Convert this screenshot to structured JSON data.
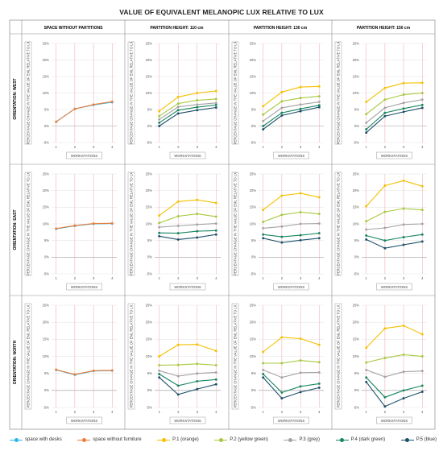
{
  "title": "VALUE OF EQUIVALENT MELANOPIC LUX RELATIVE TO LUX",
  "column_headers": [
    "SPACE WITHOUT PARTITIONS",
    "PARTITION HEIGHT: 110 cm",
    "PARTITION HEIGHT: 130 cm",
    "PARTITION HEIGHT: 150 cm"
  ],
  "row_headers": [
    "ORIENTATION: WEST",
    "ORIENTATION: EAST",
    "ORIENTATION: NORTH"
  ],
  "legend": [
    {
      "label": "space with desks",
      "color": "#29b6e8"
    },
    {
      "label": "space without furniture",
      "color": "#ee7d3b"
    },
    {
      "label": "P.1 (orange)",
      "color": "#f5c000"
    },
    {
      "label": "P.2 (yellow green)",
      "color": "#a6c83c"
    },
    {
      "label": "P.3 (grey)",
      "color": "#a3a3a3"
    },
    {
      "label": "P.4 (dark green)",
      "color": "#17855f"
    },
    {
      "label": "P.5 (blue)",
      "color": "#1c4f6a"
    }
  ],
  "chart_data": {
    "type": "line",
    "layout": "small-multiples 3x4",
    "x": [
      1,
      2,
      3,
      4
    ],
    "xlabel": "WORKSTATIONS",
    "ylabel": "PERCENTAGE CHANGE IN THE VALUE OF EML RELATIVE TO LX",
    "ylim": [
      -5,
      25
    ],
    "yticks": [
      "-5%",
      "0%",
      "5%",
      "10%",
      "15%",
      "20%",
      "25%"
    ],
    "panels": [
      {
        "row": "ORIENTATION: WEST",
        "column": "SPACE WITHOUT PARTITIONS",
        "series": [
          {
            "name": "space with desks",
            "color": "#29b6e8",
            "values": [
              1.3,
              5.2,
              6.4,
              7.2
            ]
          },
          {
            "name": "space without furniture",
            "color": "#ee7d3b",
            "values": [
              1.3,
              5.2,
              6.5,
              7.4
            ]
          }
        ]
      },
      {
        "row": "ORIENTATION: WEST",
        "column": "PARTITION HEIGHT: 110 cm",
        "series": [
          {
            "name": "P.1 (orange)",
            "color": "#f5c000",
            "values": [
              4.5,
              8.8,
              10.0,
              10.6
            ]
          },
          {
            "name": "P.2 (yellow green)",
            "color": "#a6c83c",
            "values": [
              3.0,
              6.8,
              7.8,
              8.2
            ]
          },
          {
            "name": "P.3 (grey)",
            "color": "#a3a3a3",
            "values": [
              2.0,
              5.8,
              6.5,
              7.0
            ]
          },
          {
            "name": "P.4 (dark green)",
            "color": "#17855f",
            "values": [
              1.0,
              4.8,
              5.7,
              6.4
            ]
          },
          {
            "name": "P.5 (blue)",
            "color": "#1c4f6a",
            "values": [
              0.0,
              3.8,
              4.8,
              5.6
            ]
          }
        ]
      },
      {
        "row": "ORIENTATION: WEST",
        "column": "PARTITION HEIGHT: 130 cm",
        "series": [
          {
            "name": "P.1 (orange)",
            "color": "#f5c000",
            "values": [
              6.0,
              10.3,
              11.8,
              12.0
            ]
          },
          {
            "name": "P.2 (yellow green)",
            "color": "#a6c83c",
            "values": [
              3.5,
              7.5,
              8.5,
              9.0
            ]
          },
          {
            "name": "P.3 (grey)",
            "color": "#a3a3a3",
            "values": [
              1.5,
              5.5,
              6.5,
              7.3
            ]
          },
          {
            "name": "P.4 (dark green)",
            "color": "#17855f",
            "values": [
              0.0,
              4.0,
              5.2,
              6.3
            ]
          },
          {
            "name": "P.5 (blue)",
            "color": "#1c4f6a",
            "values": [
              -1.0,
              3.2,
              4.5,
              5.7
            ]
          }
        ]
      },
      {
        "row": "ORIENTATION: WEST",
        "column": "PARTITION HEIGHT: 150 cm",
        "series": [
          {
            "name": "P.1 (orange)",
            "color": "#f5c000",
            "values": [
              7.3,
              11.5,
              13.0,
              13.1
            ]
          },
          {
            "name": "P.2 (yellow green)",
            "color": "#a6c83c",
            "values": [
              3.6,
              8.0,
              9.5,
              10.0
            ]
          },
          {
            "name": "P.3 (grey)",
            "color": "#a3a3a3",
            "values": [
              1.0,
              5.5,
              7.0,
              8.0
            ]
          },
          {
            "name": "P.4 (dark green)",
            "color": "#17855f",
            "values": [
              -1.0,
              4.0,
              5.3,
              6.4
            ]
          },
          {
            "name": "P.5 (blue)",
            "color": "#1c4f6a",
            "values": [
              -2.0,
              3.0,
              4.3,
              5.5
            ]
          }
        ]
      },
      {
        "row": "ORIENTATION: EAST",
        "column": "SPACE WITHOUT PARTITIONS",
        "series": [
          {
            "name": "space with desks",
            "color": "#29b6e8",
            "values": [
              8.5,
              9.4,
              10.0,
              10.1
            ]
          },
          {
            "name": "space without furniture",
            "color": "#ee7d3b",
            "values": [
              8.6,
              9.5,
              10.1,
              10.2
            ]
          }
        ]
      },
      {
        "row": "ORIENTATION: EAST",
        "column": "PARTITION HEIGHT: 110 cm",
        "series": [
          {
            "name": "P.1 (orange)",
            "color": "#f5c000",
            "values": [
              12.5,
              16.7,
              17.2,
              16.3
            ]
          },
          {
            "name": "P.2 (yellow green)",
            "color": "#a6c83c",
            "values": [
              10.3,
              12.3,
              13.0,
              12.2
            ]
          },
          {
            "name": "P.3 (grey)",
            "color": "#a3a3a3",
            "values": [
              9.0,
              9.4,
              9.8,
              10.1
            ]
          },
          {
            "name": "P.4 (dark green)",
            "color": "#17855f",
            "values": [
              7.3,
              7.2,
              7.8,
              8.0
            ]
          },
          {
            "name": "P.5 (blue)",
            "color": "#1c4f6a",
            "values": [
              6.3,
              5.3,
              5.9,
              6.8
            ]
          }
        ]
      },
      {
        "row": "ORIENTATION: EAST",
        "column": "PARTITION HEIGHT: 130 cm",
        "series": [
          {
            "name": "P.1 (orange)",
            "color": "#f5c000",
            "values": [
              14.2,
              18.5,
              19.2,
              18.0
            ]
          },
          {
            "name": "P.2 (yellow green)",
            "color": "#a6c83c",
            "values": [
              10.6,
              12.7,
              13.5,
              13.0
            ]
          },
          {
            "name": "P.3 (grey)",
            "color": "#a3a3a3",
            "values": [
              8.7,
              9.2,
              10.0,
              10.1
            ]
          },
          {
            "name": "P.4 (dark green)",
            "color": "#17855f",
            "values": [
              6.8,
              6.1,
              6.6,
              7.2
            ]
          },
          {
            "name": "P.5 (blue)",
            "color": "#1c4f6a",
            "values": [
              5.7,
              4.4,
              5.1,
              5.7
            ]
          }
        ]
      },
      {
        "row": "ORIENTATION: EAST",
        "column": "PARTITION HEIGHT: 150 cm",
        "series": [
          {
            "name": "P.1 (orange)",
            "color": "#f5c000",
            "values": [
              15.3,
              21.5,
              23.0,
              21.3
            ]
          },
          {
            "name": "P.2 (yellow green)",
            "color": "#a6c83c",
            "values": [
              10.8,
              13.6,
              14.6,
              14.2
            ]
          },
          {
            "name": "P.3 (grey)",
            "color": "#a3a3a3",
            "values": [
              8.3,
              8.8,
              9.8,
              10.0
            ]
          },
          {
            "name": "P.4 (dark green)",
            "color": "#17855f",
            "values": [
              6.5,
              5.0,
              6.0,
              6.8
            ]
          },
          {
            "name": "P.5 (blue)",
            "color": "#1c4f6a",
            "values": [
              5.3,
              2.7,
              3.7,
              4.7
            ]
          }
        ]
      },
      {
        "row": "ORIENTATION: NORTH",
        "column": "SPACE WITHOUT PARTITIONS",
        "series": [
          {
            "name": "space with desks",
            "color": "#29b6e8",
            "values": [
              6.0,
              4.6,
              5.7,
              5.8
            ]
          },
          {
            "name": "space without furniture",
            "color": "#ee7d3b",
            "values": [
              6.1,
              4.7,
              5.8,
              5.9
            ]
          }
        ]
      },
      {
        "row": "ORIENTATION: NORTH",
        "column": "PARTITION HEIGHT: 110 cm",
        "series": [
          {
            "name": "P.1 (orange)",
            "color": "#f5c000",
            "values": [
              10.0,
              13.4,
              13.5,
              11.6
            ]
          },
          {
            "name": "P.2 (yellow green)",
            "color": "#a6c83c",
            "values": [
              7.4,
              7.5,
              7.8,
              7.4
            ]
          },
          {
            "name": "P.3 (grey)",
            "color": "#a3a3a3",
            "values": [
              5.8,
              4.2,
              5.0,
              5.3
            ]
          },
          {
            "name": "P.4 (dark green)",
            "color": "#17855f",
            "values": [
              4.8,
              1.4,
              2.7,
              3.2
            ]
          },
          {
            "name": "P.5 (blue)",
            "color": "#1c4f6a",
            "values": [
              3.8,
              -1.2,
              0.4,
              1.8
            ]
          }
        ]
      },
      {
        "row": "ORIENTATION: NORTH",
        "column": "PARTITION HEIGHT: 130 cm",
        "series": [
          {
            "name": "P.1 (orange)",
            "color": "#f5c000",
            "values": [
              11.3,
              15.6,
              15.2,
              13.4
            ]
          },
          {
            "name": "P.2 (yellow green)",
            "color": "#a6c83c",
            "values": [
              8.0,
              8.0,
              8.8,
              8.3
            ]
          },
          {
            "name": "P.3 (grey)",
            "color": "#a3a3a3",
            "values": [
              6.0,
              3.8,
              5.2,
              5.3
            ]
          },
          {
            "name": "P.4 (dark green)",
            "color": "#17855f",
            "values": [
              4.8,
              -0.6,
              1.2,
              2.0
            ]
          },
          {
            "name": "P.5 (blue)",
            "color": "#1c4f6a",
            "values": [
              3.8,
              -2.3,
              -0.5,
              0.8
            ]
          }
        ]
      },
      {
        "row": "ORIENTATION: NORTH",
        "column": "PARTITION HEIGHT: 150 cm",
        "series": [
          {
            "name": "P.1 (orange)",
            "color": "#f5c000",
            "values": [
              12.5,
              18.2,
              19.0,
              16.5
            ]
          },
          {
            "name": "P.2 (yellow green)",
            "color": "#a6c83c",
            "values": [
              8.2,
              9.5,
              10.5,
              10.0
            ]
          },
          {
            "name": "P.3 (grey)",
            "color": "#a3a3a3",
            "values": [
              6.0,
              4.0,
              5.5,
              5.7
            ]
          },
          {
            "name": "P.4 (dark green)",
            "color": "#17855f",
            "values": [
              3.8,
              -2.0,
              0.0,
              1.4
            ]
          },
          {
            "name": "P.5 (blue)",
            "color": "#1c4f6a",
            "values": [
              2.5,
              -4.7,
              -2.3,
              -0.4
            ]
          }
        ]
      }
    ]
  }
}
